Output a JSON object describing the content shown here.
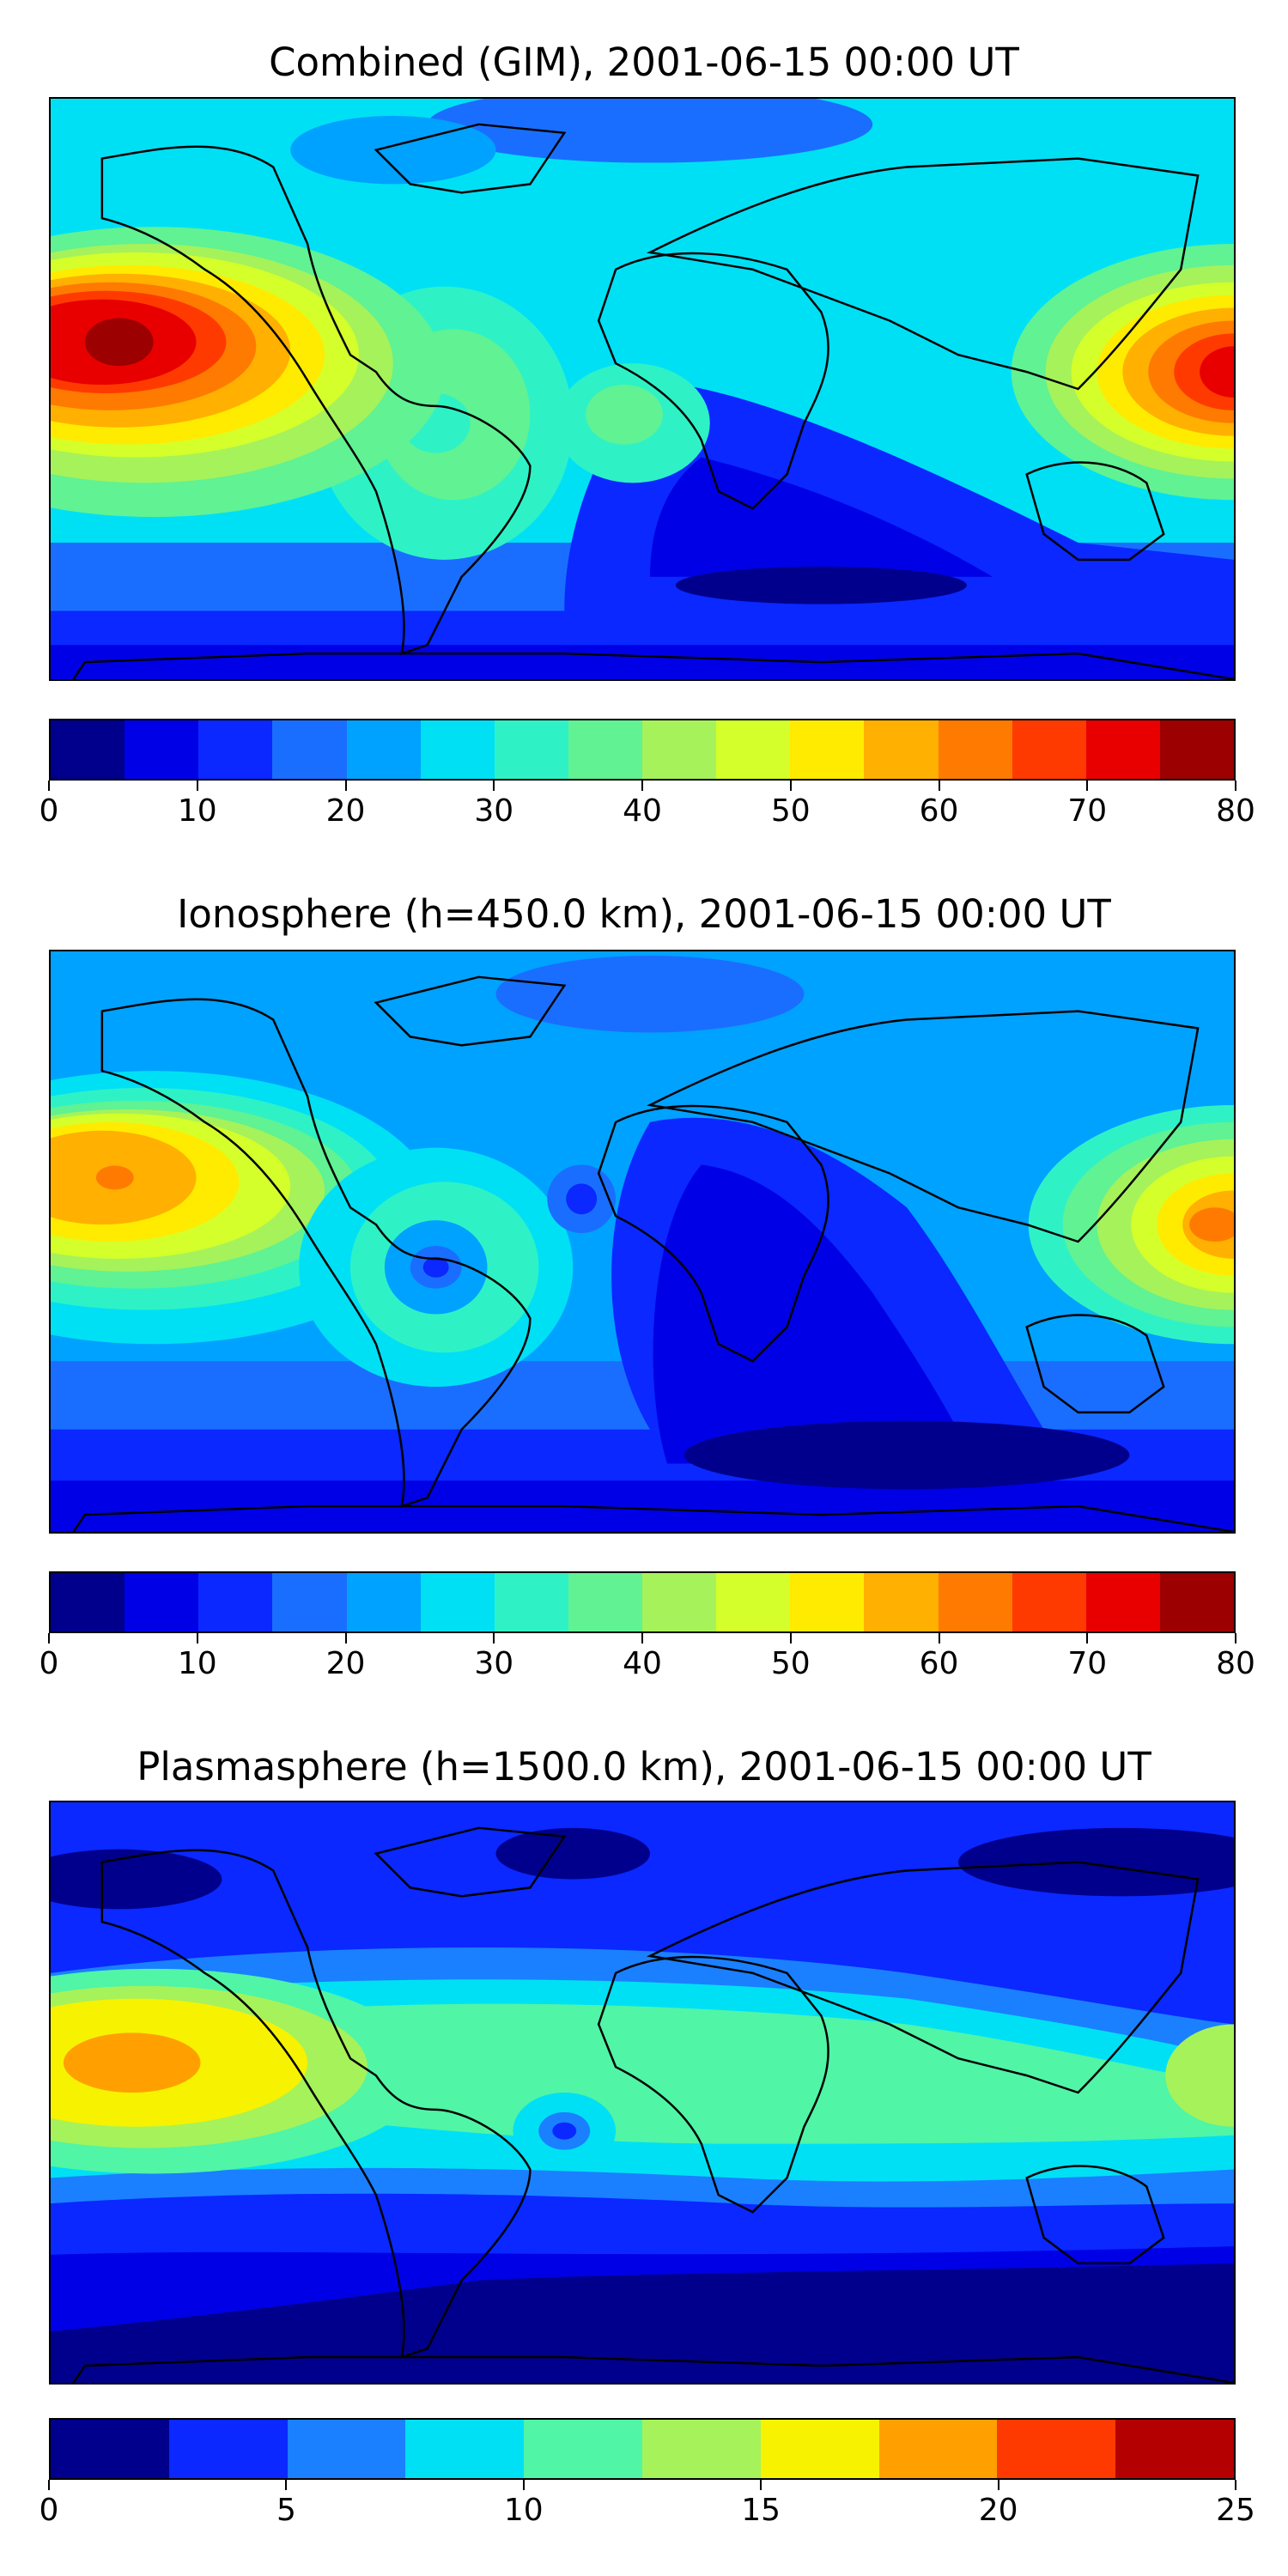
{
  "panels": [
    {
      "title": "Combined (GIM), 2001-06-15 00:00 UT",
      "colorbar": {
        "vmin": 0,
        "vmax": 80,
        "levels": 16,
        "colors": [
          "#00008c",
          "#0000e6",
          "#0a28ff",
          "#1a6eff",
          "#00a2ff",
          "#00e0f5",
          "#2ef2c6",
          "#60f293",
          "#a6f25a",
          "#d4ff2b",
          "#ffeb00",
          "#ffb000",
          "#ff7a00",
          "#ff3a00",
          "#e80000",
          "#9c0000"
        ],
        "ticks": [
          "0",
          "10",
          "20",
          "30",
          "40",
          "50",
          "60",
          "70",
          "80"
        ]
      }
    },
    {
      "title": "Ionosphere  (h=450.0 km), 2001-06-15 00:00 UT",
      "colorbar": {
        "vmin": 0,
        "vmax": 80,
        "levels": 16,
        "colors": [
          "#00008c",
          "#0000e6",
          "#0a28ff",
          "#1a6eff",
          "#00a2ff",
          "#00e0f5",
          "#2ef2c6",
          "#60f293",
          "#a6f25a",
          "#d4ff2b",
          "#ffeb00",
          "#ffb000",
          "#ff7a00",
          "#ff3a00",
          "#e80000",
          "#9c0000"
        ],
        "ticks": [
          "0",
          "10",
          "20",
          "30",
          "40",
          "50",
          "60",
          "70",
          "80"
        ]
      }
    },
    {
      "title": "Plasmasphere (h=1500.0 km), 2001-06-15 00:00 UT",
      "colorbar": {
        "vmin": 0,
        "vmax": 25,
        "levels": 10,
        "colors": [
          "#00008c",
          "#0a28ff",
          "#1a80ff",
          "#00e0f5",
          "#50f5a6",
          "#a6f25a",
          "#f7f200",
          "#ffa000",
          "#ff3a00",
          "#b40000"
        ],
        "ticks": [
          "0",
          "5",
          "10",
          "15",
          "20",
          "25"
        ]
      }
    }
  ]
}
